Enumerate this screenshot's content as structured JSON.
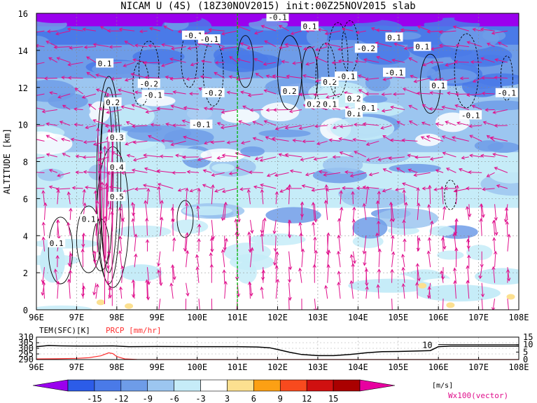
{
  "title": "NICAM U (4S) (18Z30NOV2015) init:00Z25NOV2015 slab",
  "chart_data": [
    {
      "type": "heatmap",
      "panel": "main",
      "ylabel": "ALTITUDE [km]",
      "x_ticks": [
        "96E",
        "97E",
        "98E",
        "99E",
        "100E",
        "101E",
        "102E",
        "103E",
        "104E",
        "105E",
        "106E",
        "107E",
        "108E"
      ],
      "y_ticks": [
        "0",
        "2",
        "4",
        "6",
        "8",
        "10",
        "12",
        "14",
        "16"
      ],
      "xlim": [
        96,
        108
      ],
      "ylim": [
        0,
        16
      ],
      "grid": true,
      "marker_lon": 101,
      "contour_labels": [
        {
          "text": "0.1",
          "lon": 97.7,
          "alt": 13.3
        },
        {
          "text": "0.2",
          "lon": 97.9,
          "alt": 11.2
        },
        {
          "text": "0.3",
          "lon": 98.0,
          "alt": 9.3
        },
        {
          "text": "0.4",
          "lon": 98.0,
          "alt": 7.7
        },
        {
          "text": "0.5",
          "lon": 98.0,
          "alt": 6.1
        },
        {
          "text": "0.1",
          "lon": 97.3,
          "alt": 4.9
        },
        {
          "text": "0.1",
          "lon": 96.5,
          "alt": 3.6
        },
        {
          "text": "-0.2",
          "lon": 98.8,
          "alt": 12.2
        },
        {
          "text": "-0.1",
          "lon": 98.9,
          "alt": 11.6
        },
        {
          "text": "-0.2",
          "lon": 100.4,
          "alt": 11.7
        },
        {
          "text": "-0.1",
          "lon": 100.1,
          "alt": 10.0
        },
        {
          "text": "-0.1",
          "lon": 99.9,
          "alt": 14.8
        },
        {
          "text": "-0.1",
          "lon": 100.3,
          "alt": 14.6
        },
        {
          "text": "-0.1",
          "lon": 102.0,
          "alt": 15.8
        },
        {
          "text": "0.1",
          "lon": 102.8,
          "alt": 15.3
        },
        {
          "text": "0.2",
          "lon": 102.3,
          "alt": 11.8
        },
        {
          "text": "0.2",
          "lon": 102.9,
          "alt": 11.1
        },
        {
          "text": "0.2",
          "lon": 103.3,
          "alt": 12.3
        },
        {
          "text": "-0.1",
          "lon": 103.7,
          "alt": 12.6
        },
        {
          "text": "0.1",
          "lon": 103.3,
          "alt": 11.1
        },
        {
          "text": "0.2",
          "lon": 103.9,
          "alt": 11.4
        },
        {
          "text": "0.1",
          "lon": 103.9,
          "alt": 10.6
        },
        {
          "text": "-0.1",
          "lon": 104.2,
          "alt": 10.9
        },
        {
          "text": "-0.2",
          "lon": 104.2,
          "alt": 14.1
        },
        {
          "text": "0.1",
          "lon": 104.9,
          "alt": 14.7
        },
        {
          "text": "-0.1",
          "lon": 104.9,
          "alt": 12.8
        },
        {
          "text": "0.1",
          "lon": 105.6,
          "alt": 14.2
        },
        {
          "text": "0.1",
          "lon": 106.0,
          "alt": 12.1
        },
        {
          "text": "-0.1",
          "lon": 107.7,
          "alt": 11.7
        },
        {
          "text": "-0.1",
          "lon": 106.8,
          "alt": 10.5
        }
      ]
    },
    {
      "type": "line",
      "panel": "surface",
      "left_label": "TEM(SFC)[K]",
      "right_label": "PRCP [mm/hr]",
      "y_ticks_left": [
        "310",
        "305",
        "300",
        "295",
        "290"
      ],
      "y_ticks_right": [
        "15",
        "10",
        "5",
        "0"
      ],
      "ylim_left": [
        290,
        310
      ],
      "ylim_right": [
        0,
        15
      ],
      "annotation": "10",
      "series": [
        {
          "name": "TEM(SFC)[K]",
          "x": [
            96,
            96.3,
            96.6,
            97,
            97.5,
            97.9,
            98.3,
            99,
            100,
            101,
            101.5,
            101.8,
            102,
            102.3,
            102.6,
            103,
            103.4,
            103.8,
            104.2,
            104.6,
            105,
            105.5,
            105.8,
            106,
            106.3,
            107,
            108
          ],
          "y": [
            301.5,
            302.5,
            302.2,
            302,
            302,
            302.2,
            301.5,
            301.6,
            301.5,
            301.5,
            301.2,
            300.5,
            299,
            296.5,
            294.5,
            293.5,
            293.5,
            294.5,
            296,
            297,
            297.2,
            297.6,
            298,
            301.5,
            302,
            302,
            302
          ]
        },
        {
          "name": "PRCP [mm/hr]",
          "x": [
            96,
            96.5,
            97,
            97.3,
            97.6,
            97.8,
            97.9,
            98,
            98.2,
            98.5,
            99,
            100,
            101,
            102,
            103,
            104,
            105,
            106,
            107,
            108
          ],
          "y": [
            0.4,
            0.5,
            0.8,
            1.2,
            2.5,
            4.5,
            4.0,
            2.0,
            0.4,
            0.1,
            0,
            0,
            0,
            0,
            0,
            0,
            0,
            0,
            0,
            0
          ]
        }
      ]
    },
    {
      "type": "colorbar",
      "labels": [
        "-15",
        "-12",
        "-9",
        "-6",
        "-3",
        "3",
        "6",
        "9",
        "12",
        "15"
      ],
      "unit": "[m/s]",
      "colors": [
        "#9a00ee",
        "#2c5ce8",
        "#4a7ae8",
        "#6e9ce8",
        "#9cc6f0",
        "#c6ecf8",
        "#ffffff",
        "#fce090",
        "#fca014",
        "#f84a1e",
        "#d01010",
        "#aa0000",
        "#e800a0"
      ],
      "vector_label": "Wx100(vector)"
    }
  ],
  "colors": {
    "vector": "#e0108c",
    "marker_line": "#00b400",
    "prcp": "#ff3030",
    "temp": "#000000"
  }
}
